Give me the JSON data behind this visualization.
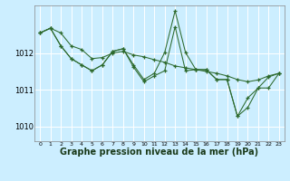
{
  "background_color": "#cceeff",
  "grid_color": "#ffffff",
  "line_color": "#2d6a2d",
  "marker_color": "#2d6a2d",
  "xlabel": "Graphe pression niveau de la mer (hPa)",
  "xlabel_fontsize": 7,
  "xtick_labels": [
    "0",
    "1",
    "2",
    "3",
    "4",
    "5",
    "6",
    "7",
    "8",
    "9",
    "10",
    "11",
    "12",
    "13",
    "14",
    "15",
    "16",
    "17",
    "18",
    "19",
    "20",
    "21",
    "22",
    "23"
  ],
  "yticks": [
    1010,
    1011,
    1012
  ],
  "ylim": [
    1009.6,
    1013.3
  ],
  "xlim": [
    -0.5,
    23.5
  ],
  "series": [
    [
      1012.55,
      1012.68,
      1012.55,
      1012.2,
      1012.1,
      1011.85,
      1011.88,
      1012.0,
      1012.05,
      1011.95,
      1011.9,
      1011.82,
      1011.75,
      1011.65,
      1011.6,
      1011.55,
      1011.5,
      1011.45,
      1011.38,
      1011.28,
      1011.22,
      1011.27,
      1011.38,
      1011.45
    ],
    [
      1012.55,
      1012.68,
      1012.2,
      1011.85,
      1011.68,
      1011.52,
      1011.68,
      1012.05,
      1012.12,
      1011.68,
      1011.28,
      1011.45,
      1012.02,
      1013.15,
      1012.02,
      1011.55,
      1011.55,
      1011.28,
      1011.28,
      1010.28,
      1010.78,
      1011.05,
      1011.35,
      1011.45
    ],
    [
      1012.55,
      1012.68,
      1012.2,
      1011.85,
      1011.68,
      1011.52,
      1011.68,
      1012.05,
      1012.12,
      1011.62,
      1011.22,
      1011.38,
      1011.52,
      1012.72,
      1011.52,
      1011.55,
      1011.55,
      1011.28,
      1011.28,
      1010.28,
      1010.52,
      1011.05,
      1011.05,
      1011.45
    ]
  ]
}
